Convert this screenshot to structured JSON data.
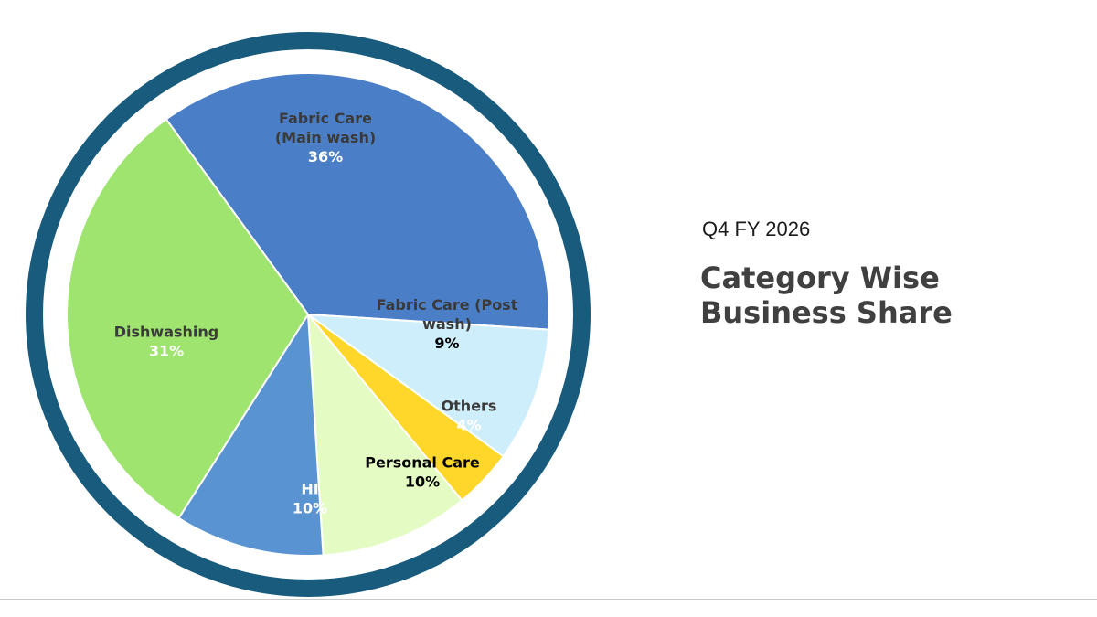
{
  "header": {
    "period": "Q4 FY 2026",
    "title_line1": "Category Wise",
    "title_line2": "Business Share"
  },
  "colors": {
    "ring": "#185b7d",
    "ring_gap": "#ffffff",
    "slice_border": "#ffffff"
  },
  "chart_data": {
    "type": "pie",
    "title": "Category Wise Business Share",
    "unit": "%",
    "slices": [
      {
        "name": "Fabric Care (Main wash)",
        "label_lines": [
          "Fabric Care",
          "(Main wash)"
        ],
        "value": 36,
        "pct": "36%",
        "color": "#4a7fc8",
        "name_color": "#3a3a3a",
        "pct_color": "#ffffff"
      },
      {
        "name": "Fabric Care (Post wash)",
        "label_lines": [
          "Fabric Care (Post",
          "wash)"
        ],
        "value": 9,
        "pct": "9%",
        "color": "#cfeefb",
        "name_color": "#3a3a3a",
        "pct_color": "#000000"
      },
      {
        "name": "Others",
        "label_lines": [
          "Others"
        ],
        "value": 4,
        "pct": "4%",
        "color": "#ffd62a",
        "name_color": "#3a3a3a",
        "pct_color": "#ffffff"
      },
      {
        "name": "Personal Care",
        "label_lines": [
          "Personal Care"
        ],
        "value": 10,
        "pct": "10%",
        "color": "#e5fbc4",
        "name_color": "#000000",
        "pct_color": "#000000"
      },
      {
        "name": "HI",
        "label_lines": [
          "HI"
        ],
        "value": 10,
        "pct": "10%",
        "color": "#5a93d2",
        "name_color": "#ffffff",
        "pct_color": "#ffffff"
      },
      {
        "name": "Dishwashing",
        "label_lines": [
          "Dishwashing"
        ],
        "value": 31,
        "pct": "31%",
        "color": "#9ee46e",
        "name_color": "#3a3a3a",
        "pct_color": "#ffffff"
      }
    ]
  }
}
